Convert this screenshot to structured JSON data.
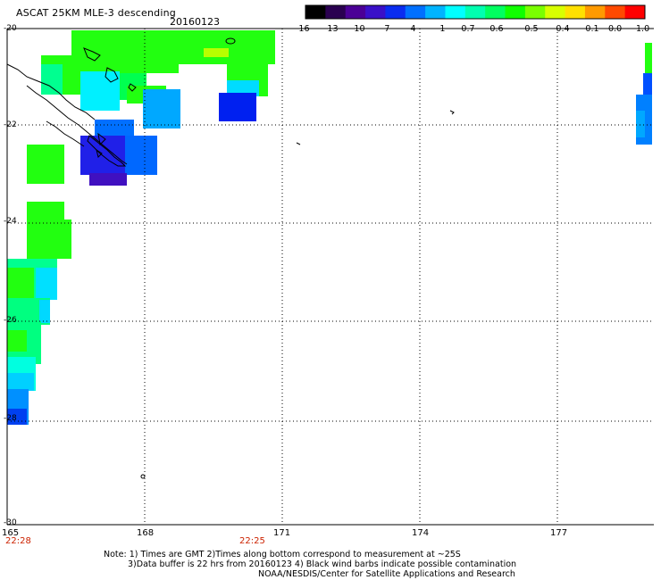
{
  "header": {
    "title": "ASCAT 25KM MLE-3 descending",
    "date": "20160123"
  },
  "colorbar": {
    "labels": [
      "-16",
      "-13",
      "-10",
      "-7",
      "-4",
      "-1",
      "-0.7",
      "-0.6",
      "-0.5",
      "-0.4",
      "-0.1",
      "0.0",
      "1.0"
    ],
    "colors": [
      "#000000",
      "#2a0050",
      "#4b0096",
      "#3a10c8",
      "#0a2cf0",
      "#0070ff",
      "#00b4ff",
      "#00ffff",
      "#00ffb0",
      "#00ff60",
      "#10ff00",
      "#7aff00",
      "#d8ff00",
      "#ffe000",
      "#ff9a00",
      "#ff4a00",
      "#ff0000"
    ]
  },
  "axes": {
    "lat_labels": [
      "-20",
      "-22",
      "-24",
      "-26",
      "-28",
      "-30"
    ],
    "lon_labels": [
      "165",
      "168",
      "171",
      "174",
      "177"
    ]
  },
  "times": [
    "22:28",
    "22:25"
  ],
  "notes": [
    "Note: 1) Times are GMT 2)Times along bottom correspond to measurement at ~25S",
    "3)Data buffer is 22 hrs from 20160123 4) Black wind barbs indicate possible contamination",
    "NOAA/NESDIS/Center for Satellite Applications and Research"
  ]
}
